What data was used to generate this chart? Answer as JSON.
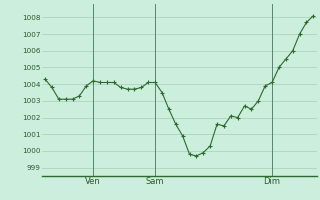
{
  "y_values": [
    1004.3,
    1003.8,
    1003.1,
    1003.1,
    1003.1,
    1003.3,
    1003.9,
    1004.2,
    1004.1,
    1004.1,
    1004.1,
    1003.8,
    1003.7,
    1003.7,
    1003.8,
    1004.1,
    1004.1,
    1003.5,
    1002.5,
    1001.6,
    1000.9,
    999.8,
    999.7,
    999.9,
    1000.3,
    1001.6,
    1001.5,
    1002.1,
    1002.0,
    1002.7,
    1002.5,
    1003.0,
    1003.9,
    1004.1,
    1005.0,
    1005.5,
    1006.0,
    1007.0,
    1007.7,
    1008.1
  ],
  "line_color": "#2d6a2d",
  "marker_color": "#2d6a2d",
  "bg_color": "#cceedd",
  "grid_color": "#aaccbb",
  "tick_label_color": "#2d5a2d",
  "ylim": [
    998.5,
    1008.8
  ],
  "yticks": [
    999,
    1000,
    1001,
    1002,
    1003,
    1004,
    1005,
    1006,
    1007,
    1008
  ],
  "day_labels": [
    "Ven",
    "Sam",
    "Dim"
  ],
  "day_positions": [
    7,
    16,
    33
  ],
  "vline_color": "#4a7a5a",
  "bottom_line_color": "#2d6a2d"
}
